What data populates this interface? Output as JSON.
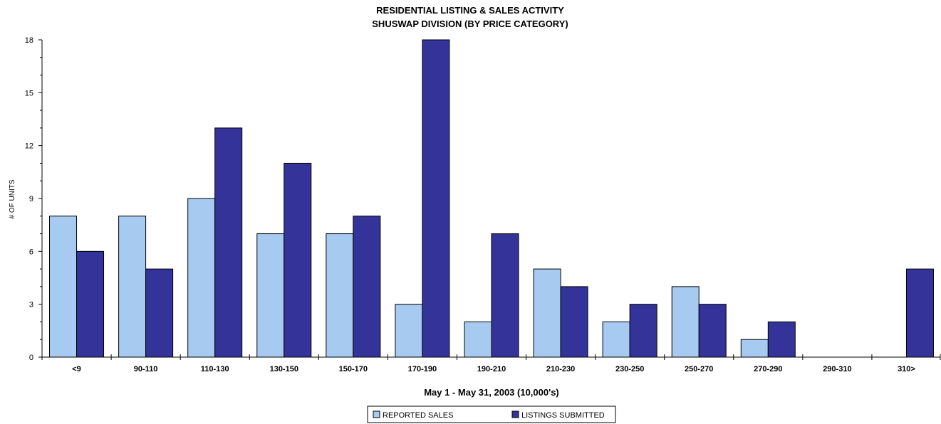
{
  "chart_data": {
    "type": "bar",
    "title": "RESIDENTIAL LISTING & SALES ACTIVITY",
    "subtitle": "SHUSWAP DIVISION (BY PRICE CATEGORY)",
    "xlabel": "May 1 - May 31, 2003 (10,000's)",
    "ylabel": "# OF UNITS",
    "ylim": [
      0,
      18
    ],
    "yticks": [
      "0",
      "3",
      "6",
      "9",
      "12",
      "15",
      "18"
    ],
    "categories": [
      "<9",
      "90-110",
      "110-130",
      "130-150",
      "150-170",
      "170-190",
      "190-210",
      "210-230",
      "230-250",
      "250-270",
      "270-290",
      "290-310",
      "310>"
    ],
    "series": [
      {
        "name": "REPORTED SALES",
        "color": "#a6caf0",
        "values": [
          8,
          8,
          9,
          7,
          7,
          3,
          2,
          5,
          2,
          4,
          1,
          0,
          0
        ]
      },
      {
        "name": "LISTINGS SUBMITTED",
        "color": "#333399",
        "values": [
          6,
          5,
          13,
          11,
          8,
          18,
          7,
          4,
          3,
          3,
          2,
          0,
          5
        ]
      }
    ],
    "grid": false,
    "legend_position": "bottom"
  }
}
